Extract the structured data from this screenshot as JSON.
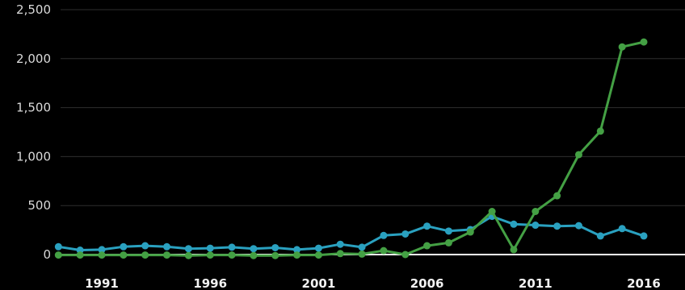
{
  "chart_data": {
    "type": "line",
    "x": [
      1989,
      1990,
      1991,
      1992,
      1993,
      1994,
      1995,
      1996,
      1997,
      1998,
      1999,
      2000,
      2001,
      2002,
      2003,
      2004,
      2005,
      2006,
      2007,
      2008,
      2009,
      2010,
      2011,
      2012,
      2013,
      2014,
      2015,
      2016,
      2017,
      2018
    ],
    "x_ticks": [
      1991,
      1996,
      2001,
      2006,
      2011,
      2016
    ],
    "x_tick_labels": [
      "1991",
      "1996",
      "2001",
      "2006",
      "2011",
      "2016"
    ],
    "y_ticks": [
      0,
      500,
      1000,
      1500,
      2000,
      2500
    ],
    "y_tick_labels": [
      "0",
      "500",
      "1,000",
      "1,500",
      "2,000",
      "2,500"
    ],
    "ylim": [
      0,
      2500
    ],
    "grid": true,
    "title": "",
    "xlabel": "",
    "ylabel": "",
    "series": [
      {
        "color": "#2aa1c0",
        "values": [
          80,
          45,
          50,
          80,
          90,
          80,
          60,
          65,
          75,
          60,
          70,
          50,
          65,
          105,
          75,
          195,
          210,
          290,
          240,
          255,
          390,
          310,
          300,
          290,
          295,
          190,
          265,
          190,
          null,
          null
        ]
      },
      {
        "color": "#44a044",
        "values": [
          -5,
          -5,
          -5,
          -5,
          -5,
          -5,
          -10,
          -5,
          -5,
          -10,
          -10,
          -5,
          -5,
          10,
          5,
          40,
          0,
          90,
          120,
          230,
          440,
          50,
          440,
          600,
          1020,
          1260,
          2120,
          2170,
          null,
          null
        ]
      }
    ]
  }
}
